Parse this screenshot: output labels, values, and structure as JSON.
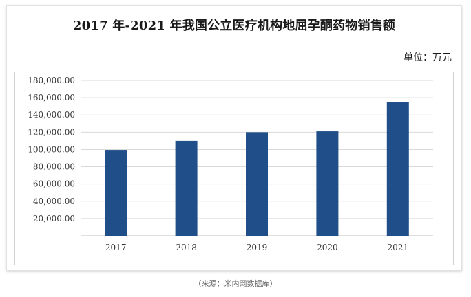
{
  "chart_data": {
    "type": "bar",
    "title": "2017 年-2021 年我国公立医疗机构地屈孕酮药物销售额",
    "unit_label": "单位：万元",
    "categories": [
      "2017",
      "2018",
      "2019",
      "2020",
      "2021"
    ],
    "values": [
      99500,
      110000,
      120000,
      121000,
      155000
    ],
    "ylim": [
      0,
      180000
    ],
    "yticks": [
      {
        "value": 0,
        "label": "-"
      },
      {
        "value": 20000,
        "label": "20,000.00"
      },
      {
        "value": 40000,
        "label": "40,000.00"
      },
      {
        "value": 60000,
        "label": "60,000.00"
      },
      {
        "value": 80000,
        "label": "80,000.00"
      },
      {
        "value": 100000,
        "label": "100,000.00"
      },
      {
        "value": 120000,
        "label": "120,000.00"
      },
      {
        "value": 140000,
        "label": "140,000.00"
      },
      {
        "value": 160000,
        "label": "160,000.00"
      },
      {
        "value": 180000,
        "label": "180,000.00"
      }
    ],
    "grid": true,
    "bar_color": "#1f4e89"
  },
  "source": "（来源：米内网数据库）"
}
